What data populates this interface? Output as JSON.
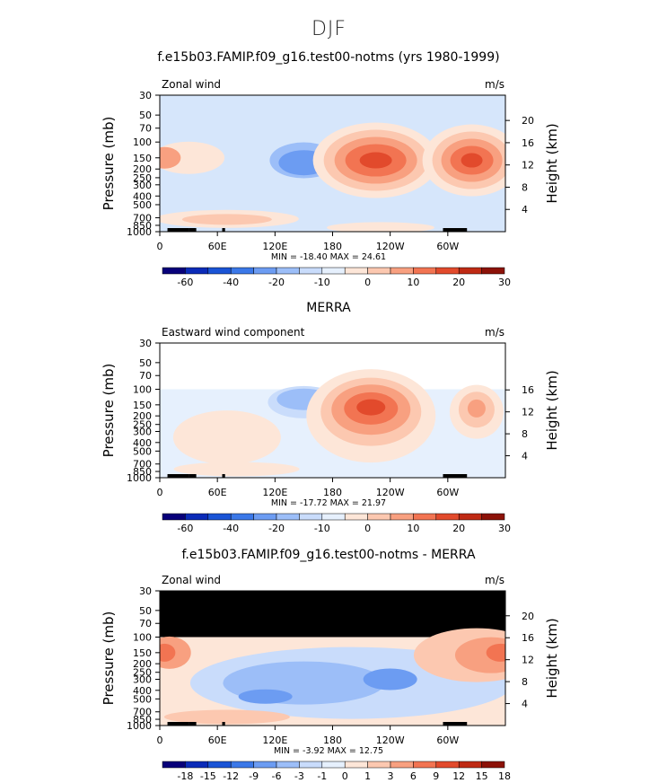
{
  "main_title": "DJF",
  "units_label": "m/s",
  "colors": {
    "levels_top": [
      "#08007a",
      "#0b2bb8",
      "#1a54d6",
      "#3b78e8",
      "#6c9cf2",
      "#9cbef8",
      "#c9dcfb",
      "#e6f0fd",
      "#fde6d8",
      "#fcc8b0",
      "#f8a080",
      "#f27452",
      "#e24a2c",
      "#bf2a14",
      "#8c1208"
    ],
    "levels_diff": [
      "#08007a",
      "#0b2bb8",
      "#1a54d6",
      "#3b78e8",
      "#6c9cf2",
      "#9cbef8",
      "#c9dcfb",
      "#e6f0fd",
      "#fde6d8",
      "#fcc8b0",
      "#f8a080",
      "#f27452",
      "#e24a2c",
      "#bf2a14",
      "#8c1208"
    ],
    "land": "#000000",
    "missing": "#000000"
  },
  "chart_data": [
    {
      "type": "heatmap",
      "title": "f.e15b03.FAMIP.f09_g16.test00-notms (yrs 1980-1999)",
      "field_label": "Zonal wind",
      "units": "m/s",
      "xlabel": "",
      "ylabel": "Pressure (mb)",
      "y2label": "Height (km)",
      "x_ticks": [
        "0",
        "60E",
        "120E",
        "180",
        "120W",
        "60W"
      ],
      "y_ticks": [
        "30",
        "50",
        "70",
        "100",
        "150",
        "200",
        "250",
        "300",
        "400",
        "500",
        "700",
        "850",
        "1000"
      ],
      "y2_ticks": [
        "20",
        "16",
        "12",
        "8",
        "4"
      ],
      "stats": "MIN = -18.40   MAX =  24.61",
      "min": -18.4,
      "max": 24.61,
      "colorbar_ticks": [
        "-60",
        "-40",
        "-20",
        "-10",
        "0",
        "10",
        "20",
        "30"
      ],
      "features": [
        {
          "kind": "jet",
          "lon": 150,
          "p": 180,
          "value": -15
        },
        {
          "kind": "jet",
          "lon": 225,
          "p": 150,
          "value": 24
        },
        {
          "kind": "jet",
          "lon": 325,
          "p": 150,
          "value": 22
        },
        {
          "kind": "jet",
          "lon": 15,
          "p": 150,
          "value": 6
        }
      ],
      "has_missing_top": false
    },
    {
      "type": "heatmap",
      "title": "MERRA",
      "field_label": "Eastward wind component",
      "units": "m/s",
      "xlabel": "",
      "ylabel": "Pressure (mb)",
      "y2label": "Height (km)",
      "x_ticks": [
        "0",
        "60E",
        "120E",
        "180",
        "120W",
        "60W"
      ],
      "y_ticks": [
        "30",
        "50",
        "70",
        "100",
        "150",
        "200",
        "250",
        "300",
        "400",
        "500",
        "700",
        "850",
        "1000"
      ],
      "y2_ticks": [
        "16",
        "12",
        "8",
        "4"
      ],
      "stats": "MIN = -17.72   MAX =  21.97",
      "min": -17.72,
      "max": 21.97,
      "colorbar_ticks": [
        "-60",
        "-40",
        "-20",
        "-10",
        "0",
        "10",
        "20",
        "30"
      ],
      "features": [
        {
          "kind": "jet",
          "lon": 150,
          "p": 170,
          "value": -12
        },
        {
          "kind": "jet",
          "lon": 225,
          "p": 160,
          "value": 21
        },
        {
          "kind": "jet",
          "lon": 325,
          "p": 170,
          "value": 12
        }
      ],
      "has_missing_top": "blank"
    },
    {
      "type": "heatmap",
      "title": "f.e15b03.FAMIP.f09_g16.test00-notms - MERRA",
      "field_label": "Zonal wind",
      "units": "m/s",
      "xlabel": "",
      "ylabel": "Pressure (mb)",
      "y2label": "Height (km)",
      "x_ticks": [
        "0",
        "60E",
        "120E",
        "180",
        "120W",
        "60W"
      ],
      "y_ticks": [
        "30",
        "50",
        "70",
        "100",
        "150",
        "200",
        "250",
        "300",
        "400",
        "500",
        "700",
        "850",
        "1000"
      ],
      "y2_ticks": [
        "20",
        "16",
        "12",
        "8",
        "4"
      ],
      "stats": "MIN = -3.92   MAX =  12.75",
      "min": -3.92,
      "max": 12.75,
      "colorbar_ticks": [
        "-18",
        "-15",
        "-12",
        "-9",
        "-6",
        "-3",
        "-1",
        "0",
        "1",
        "3",
        "6",
        "9",
        "12",
        "15",
        "18"
      ],
      "features": [
        {
          "kind": "jet",
          "lon": 340,
          "p": 160,
          "value": 10
        },
        {
          "kind": "jet",
          "lon": 10,
          "p": 150,
          "value": 8
        },
        {
          "kind": "jet",
          "lon": 150,
          "p": 350,
          "value": -3
        }
      ],
      "has_missing_top": "black"
    }
  ]
}
